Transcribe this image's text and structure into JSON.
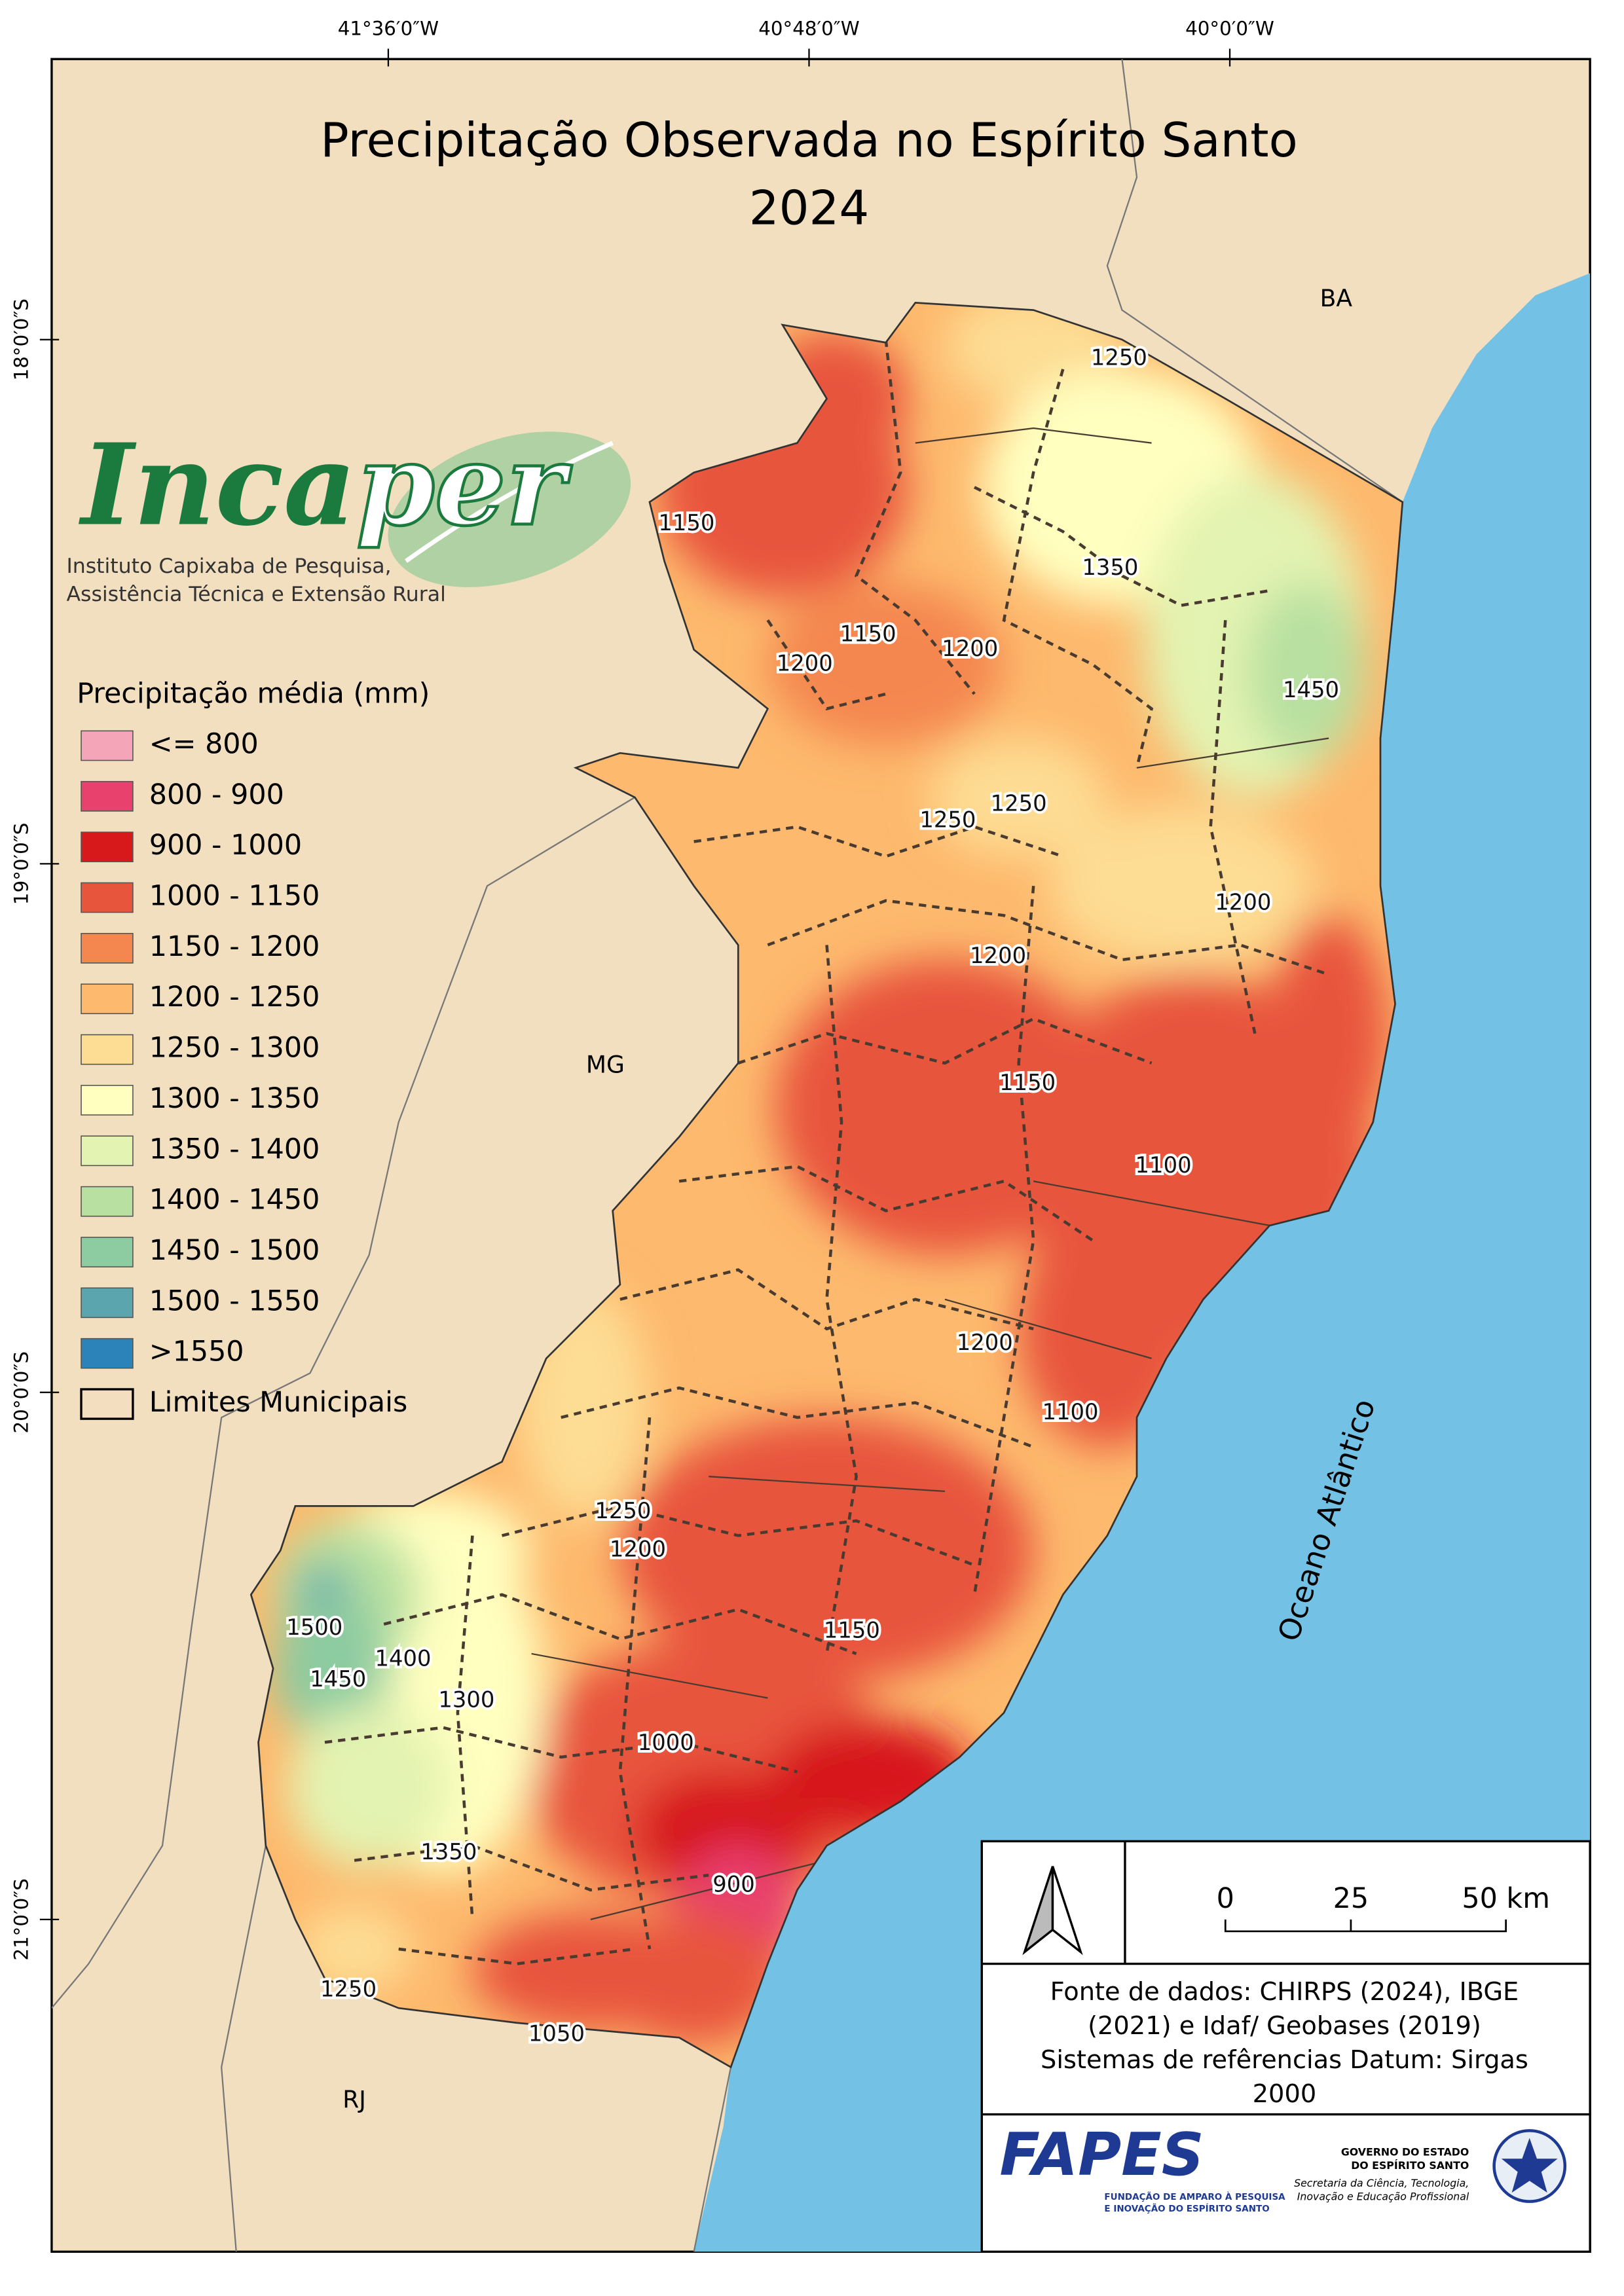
{
  "title": [
    "Precipitação Observada no Espírito Santo",
    "2024"
  ],
  "coordinates": {
    "longitude": [
      "41°36′0″W",
      "40°48′0″W",
      "40°0′0″W"
    ],
    "latitude": [
      "18°0′0″S",
      "19°0′0″S",
      "20°0′0″S",
      "21°0′0″S"
    ]
  },
  "regions": {
    "neighbors": [
      "BA",
      "MG",
      "RJ"
    ],
    "ocean": "Oceano Atlântico"
  },
  "isolines": [
    1250,
    1150,
    1350,
    1150,
    1200,
    1200,
    1450,
    1250,
    1250,
    1200,
    1200,
    1150,
    1100,
    1200,
    1100,
    1250,
    1200,
    1500,
    1400,
    1450,
    1300,
    1150,
    1000,
    900,
    1350,
    1250,
    1050
  ],
  "logo": {
    "name_start": "Inca",
    "name_end": "per",
    "subtitle": [
      "Instituto Capixaba de Pesquisa,",
      "Assistência Técnica e Extensão Rural"
    ]
  },
  "legend": {
    "title": "Precipitação média (mm)",
    "items": [
      {
        "label": "<= 800",
        "color": "#f4a6b8"
      },
      {
        "label": "800 - 900",
        "color": "#e8416e"
      },
      {
        "label": "900 - 1000",
        "color": "#d7191c"
      },
      {
        "label": "1000 - 1150",
        "color": "#e8553d"
      },
      {
        "label": "1150 - 1200",
        "color": "#f4874f"
      },
      {
        "label": "1200 - 1250",
        "color": "#fdb96d"
      },
      {
        "label": "1250 - 1300",
        "color": "#fddc93"
      },
      {
        "label": "1300 - 1350",
        "color": "#ffffbf"
      },
      {
        "label": "1350 - 1400",
        "color": "#e3f3b1"
      },
      {
        "label": "1400 - 1450",
        "color": "#b8e0a0"
      },
      {
        "label": "1450 - 1500",
        "color": "#8dcba0"
      },
      {
        "label": "1500 - 1550",
        "color": "#5aa5ae"
      },
      {
        "label": ">1550",
        "color": "#2b83ba"
      },
      {
        "label": "Limites Municipais",
        "color": "#f3dfc0"
      }
    ]
  },
  "scale_bar": {
    "ticks": [
      "0",
      "25",
      "50 km"
    ]
  },
  "source": [
    "Fonte de dados: CHIRPS (2024), IBGE",
    "(2021) e Idaf/ Geobases (2019)",
    "Sistemas de refêrencias Datum: Sirgas",
    "2000"
  ],
  "footer": {
    "fapes": "FAPES",
    "fapes_subtitle": [
      "FUNDAÇÃO DE AMPARO À PESQUISA",
      "E INOVAÇÃO DO ESPÍRITO SANTO"
    ],
    "government": [
      "GOVERNO DO ESTADO",
      "DO ESPÍRITO SANTO"
    ],
    "secretariat": [
      "Secretaria da Ciência, Tecnologia,",
      "Inovação e Educação Profissional"
    ]
  }
}
